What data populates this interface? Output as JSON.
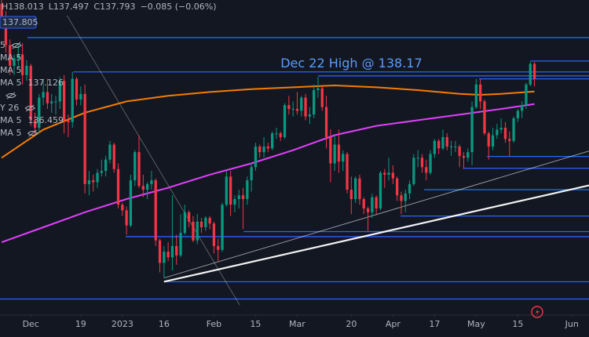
{
  "chart_data": {
    "type": "candlestick",
    "colors": {
      "up": "#089981",
      "down": "#f23645",
      "level": "#2962ff",
      "trend": "#ffffff"
    },
    "xlim": [
      -0.4,
      141.1
    ],
    "ylim": [
      125.1,
      142.0
    ],
    "xticks": [
      {
        "value": 7,
        "label": "Dec"
      },
      {
        "value": 19,
        "label": "19"
      },
      {
        "value": 29,
        "label": "2023"
      },
      {
        "value": 39,
        "label": "16"
      },
      {
        "value": 51,
        "label": "Feb"
      },
      {
        "value": 61,
        "label": "15"
      },
      {
        "value": 71,
        "label": "Mar"
      },
      {
        "value": 84,
        "label": "20"
      },
      {
        "value": 94,
        "label": "Apr"
      },
      {
        "value": 104,
        "label": "17"
      },
      {
        "value": 114,
        "label": "May"
      },
      {
        "value": 124,
        "label": "15"
      },
      {
        "value": 137,
        "label": "Jun"
      }
    ],
    "header": [
      "H138.013",
      "L137.497",
      "C137.793",
      "−0.085 (−0.06%)"
    ],
    "price_label": "137.805",
    "annotation": {
      "text": "Dec 22 High @ 138.17",
      "x": 67,
      "value": 138.6
    },
    "indicators": [
      {
        "label": "5",
        "hidden": true
      },
      {
        "label": "MA 5",
        "hidden": false
      },
      {
        "label": "MA 5",
        "hidden": false
      },
      {
        "label": "MA 5",
        "value": "137.126",
        "color": "#f57c00"
      },
      {
        "label": "",
        "hidden": true
      },
      {
        "label": "Y 26",
        "hidden": true
      },
      {
        "label": "MA 5",
        "value": "136.459",
        "color": "#e040fb"
      },
      {
        "label": "MA 5",
        "hidden": true
      }
    ],
    "open": [
      141.8,
      141.0,
      139.6,
      138.5,
      138.9,
      139.1,
      138.0,
      138.5,
      135.6,
      135.2,
      136.8,
      137.1,
      136.5,
      136.6,
      136.6,
      137.7,
      135.6,
      135.5,
      137.8,
      136.7,
      137.0,
      132.2,
      132.4,
      132.3,
      132.8,
      132.9,
      133.5,
      134.3,
      133.0,
      131.1,
      130.8,
      130.0,
      132.4,
      133.9,
      132.1,
      131.9,
      132.2,
      132.4,
      129.2,
      128.0,
      128.6,
      128.3,
      128.9,
      128.4,
      129.6,
      130.7,
      130.2,
      129.2,
      130.2,
      129.9,
      130.4,
      130.1,
      128.9,
      128.7,
      131.1,
      132.6,
      131.1,
      131.4,
      131.6,
      131.4,
      132.4,
      133.1,
      134.2,
      133.9,
      134.2,
      134.1,
      134.9,
      134.9,
      134.7,
      136.4,
      136.2,
      136.2,
      136.1,
      136.8,
      135.8,
      135.9,
      137.2,
      137.3,
      136.3,
      134.7,
      133.3,
      134.3,
      133.4,
      133.8,
      131.9,
      131.4,
      132.5,
      131.4,
      130.9,
      130.7,
      131.5,
      130.9,
      132.8,
      132.7,
      132.8,
      132.5,
      131.6,
      131.3,
      131.7,
      132.2,
      133.6,
      133.6,
      133.1,
      132.8,
      133.8,
      134.5,
      134.1,
      134.7,
      134.2,
      134.2,
      134.2,
      133.7,
      133.6,
      133.9,
      136.3,
      137.5,
      136.6,
      134.9,
      134.2,
      134.8,
      135.1,
      135.2,
      134.6,
      134.5,
      135.7,
      136.1,
      136.4,
      137.5,
      138.6
    ],
    "high": [
      142.2,
      141.4,
      139.9,
      139.1,
      139.6,
      139.7,
      138.8,
      138.6,
      136.0,
      137.0,
      137.8,
      137.8,
      137.0,
      136.9,
      137.9,
      138.0,
      135.9,
      138.17,
      137.9,
      137.4,
      137.5,
      132.9,
      132.7,
      133.0,
      133.5,
      133.7,
      134.5,
      134.4,
      133.3,
      131.2,
      131.0,
      132.7,
      134.0,
      134.8,
      132.7,
      132.3,
      132.9,
      132.5,
      129.3,
      128.9,
      129.1,
      131.6,
      129.5,
      130.6,
      131.1,
      130.8,
      130.5,
      130.6,
      130.4,
      130.5,
      130.5,
      130.2,
      129.3,
      131.2,
      132.9,
      132.9,
      131.6,
      131.9,
      132.0,
      132.6,
      133.3,
      134.4,
      134.3,
      134.7,
      134.4,
      135.0,
      135.2,
      135.0,
      136.5,
      136.9,
      136.6,
      137.1,
      136.9,
      137.0,
      136.3,
      137.5,
      137.9,
      137.4,
      136.9,
      135.1,
      134.8,
      135.1,
      134.0,
      133.9,
      132.6,
      132.6,
      132.7,
      131.5,
      131.0,
      131.7,
      131.6,
      132.9,
      133.0,
      133.6,
      133.2,
      132.6,
      131.8,
      131.9,
      132.4,
      133.8,
      134.0,
      133.8,
      133.5,
      134.0,
      134.6,
      134.6,
      135.1,
      134.9,
      134.5,
      134.5,
      134.3,
      133.9,
      134.1,
      136.6,
      137.8,
      137.8,
      136.7,
      135.0,
      135.2,
      135.4,
      135.7,
      135.5,
      135.0,
      135.8,
      136.2,
      136.6,
      137.6,
      138.7,
      138.7
    ],
    "low": [
      140.6,
      139.2,
      138.0,
      138.0,
      138.4,
      137.5,
      137.7,
      135.3,
      134.8,
      134.9,
      136.4,
      136.2,
      136.0,
      135.9,
      136.2,
      134.9,
      134.7,
      135.2,
      136.4,
      136.4,
      131.7,
      131.6,
      131.8,
      132.0,
      132.6,
      132.6,
      133.3,
      132.8,
      130.9,
      130.5,
      129.5,
      129.9,
      132.1,
      132.0,
      131.5,
      131.4,
      131.9,
      128.9,
      127.5,
      127.2,
      128.1,
      127.6,
      127.9,
      128.3,
      129.5,
      129.9,
      129.1,
      129.0,
      129.6,
      129.7,
      129.8,
      128.5,
      128.1,
      128.6,
      131.0,
      130.5,
      130.7,
      130.9,
      129.8,
      131.1,
      131.8,
      132.9,
      133.6,
      133.6,
      133.9,
      134.0,
      134.6,
      134.5,
      134.6,
      135.9,
      135.8,
      135.9,
      135.8,
      135.6,
      135.4,
      135.7,
      136.8,
      136.1,
      134.1,
      132.3,
      132.9,
      132.8,
      132.9,
      131.7,
      130.6,
      131.2,
      131.1,
      130.6,
      129.7,
      130.4,
      130.6,
      130.8,
      132.0,
      132.4,
      132.2,
      131.3,
      130.6,
      130.7,
      131.4,
      132.1,
      133.1,
      132.8,
      132.4,
      132.7,
      133.6,
      133.8,
      134.0,
      134.0,
      133.7,
      133.9,
      133.1,
      133.0,
      133.4,
      133.2,
      136.2,
      136.2,
      134.8,
      133.5,
      134.0,
      134.6,
      134.9,
      134.4,
      133.7,
      134.4,
      135.5,
      135.7,
      136.2,
      137.4,
      137.4
    ],
    "close": [
      141.0,
      139.6,
      138.5,
      138.9,
      139.1,
      138.0,
      138.5,
      135.6,
      135.2,
      136.8,
      137.1,
      136.5,
      136.6,
      136.6,
      137.7,
      135.6,
      135.5,
      137.8,
      136.7,
      137.0,
      132.2,
      132.4,
      132.3,
      132.8,
      132.9,
      133.5,
      134.3,
      133.0,
      131.1,
      130.8,
      130.0,
      132.4,
      133.9,
      132.1,
      131.9,
      132.2,
      132.4,
      129.2,
      128.0,
      128.6,
      128.3,
      128.9,
      128.4,
      129.6,
      130.7,
      130.2,
      129.2,
      130.2,
      129.9,
      130.4,
      130.1,
      128.9,
      128.7,
      131.1,
      132.6,
      131.1,
      131.4,
      131.6,
      131.4,
      132.4,
      133.1,
      134.2,
      133.9,
      134.2,
      134.1,
      134.9,
      134.9,
      134.7,
      136.4,
      136.2,
      136.2,
      136.1,
      136.8,
      135.8,
      135.9,
      137.2,
      137.3,
      136.3,
      134.7,
      133.3,
      134.3,
      133.4,
      133.8,
      131.9,
      131.4,
      132.5,
      131.4,
      130.9,
      130.7,
      131.5,
      130.9,
      132.8,
      132.7,
      132.8,
      132.5,
      131.6,
      131.3,
      131.7,
      132.2,
      133.6,
      133.6,
      133.1,
      132.8,
      133.8,
      134.5,
      134.1,
      134.7,
      134.2,
      134.2,
      134.2,
      133.7,
      133.6,
      133.9,
      136.3,
      137.5,
      136.6,
      134.9,
      134.2,
      134.8,
      135.1,
      135.2,
      134.6,
      134.5,
      135.7,
      136.1,
      136.4,
      137.5,
      138.6,
      137.8
    ],
    "series": [
      {
        "color": "#f57c00",
        "x": [
          0,
          10,
          20,
          30,
          40,
          50,
          60,
          70,
          80,
          90,
          100,
          110,
          115,
          120,
          128
        ],
        "values": [
          133.6,
          135.1,
          136.0,
          136.6,
          136.9,
          137.1,
          137.25,
          137.35,
          137.45,
          137.35,
          137.2,
          137.0,
          136.95,
          137.0,
          137.13
        ]
      },
      {
        "color": "#e040fb",
        "x": [
          0,
          10,
          20,
          30,
          40,
          50,
          60,
          70,
          80,
          90,
          100,
          110,
          120,
          128
        ],
        "values": [
          129.1,
          129.9,
          130.7,
          131.4,
          132.0,
          132.7,
          133.3,
          134.0,
          134.8,
          135.3,
          135.6,
          135.9,
          136.2,
          136.46
        ]
      }
    ],
    "levels": [
      {
        "value": 140.0,
        "start": 6.2
      },
      {
        "value": 138.17,
        "start": 17.2
      },
      {
        "value": 137.96,
        "start": 76.0
      },
      {
        "value": 138.75,
        "start": 127.0
      },
      {
        "value": 137.8,
        "start": 114.7
      },
      {
        "value": 133.67,
        "start": 116.6
      },
      {
        "value": 133.04,
        "start": 110.9
      },
      {
        "value": 131.9,
        "start": 101.5
      },
      {
        "value": 130.5,
        "start": 95.8
      },
      {
        "value": 129.67,
        "start": 58.1
      },
      {
        "value": 129.4,
        "start": 29.8
      },
      {
        "value": 127.0,
        "start": 39.3
      },
      {
        "value": 126.08,
        "start": -0.4
      }
    ],
    "trendlines": [
      {
        "x": [
          39,
          141.1
        ],
        "values": [
          127.0,
          132.13
        ],
        "width": 2.2,
        "opacity": 0.95
      },
      {
        "x": [
          39,
          141.1
        ],
        "values": [
          127.2,
          133.96
        ],
        "width": 1,
        "opacity": 0.55
      },
      {
        "x": [
          15.7,
          57.2
        ],
        "values": [
          141.17,
          125.75
        ],
        "width": 1,
        "opacity": 0.3
      }
    ]
  }
}
